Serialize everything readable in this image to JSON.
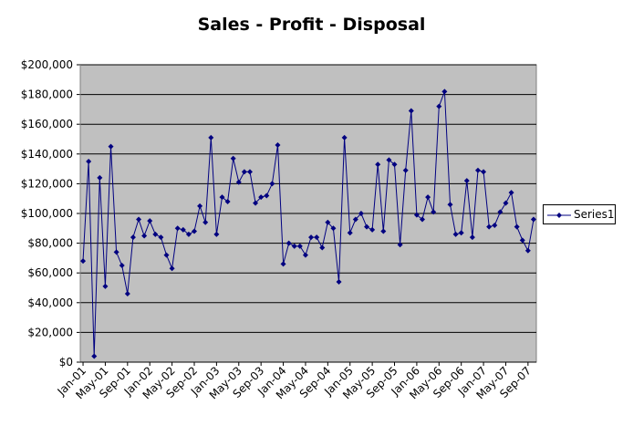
{
  "chart_data": {
    "type": "line",
    "title": "Sales - Profit - Disposal",
    "xlabel": "",
    "ylabel": "",
    "ylim": [
      0,
      200000
    ],
    "y_ticks": [
      0,
      20000,
      40000,
      60000,
      80000,
      100000,
      120000,
      140000,
      160000,
      180000,
      200000
    ],
    "y_tick_labels": [
      "$0",
      "$20,000",
      "$40,000",
      "$60,000",
      "$80,000",
      "$100,000",
      "$120,000",
      "$140,000",
      "$160,000",
      "$180,000",
      "$200,000"
    ],
    "x_tick_labels": [
      "Jan-01",
      "May-01",
      "Sep-01",
      "Jan-02",
      "May-02",
      "Sep-02",
      "Jan-03",
      "May-03",
      "Sep-03",
      "Jan-04",
      "May-04",
      "Sep-04",
      "Jan-05",
      "May-05",
      "Sep-05",
      "Jan-06",
      "May-06",
      "Sep-06",
      "Jan-07",
      "May-07",
      "Sep-07"
    ],
    "x_tick_every_months": 4,
    "grid": true,
    "plot_background": "#c0c0c0",
    "series_color": "#000080",
    "legend_position": "right",
    "series": [
      {
        "name": "Series1",
        "values": [
          68000,
          135000,
          4000,
          124000,
          51000,
          145000,
          74000,
          65000,
          46000,
          84000,
          96000,
          85000,
          95000,
          86000,
          84000,
          72000,
          63000,
          90000,
          89000,
          86000,
          88000,
          105000,
          94000,
          151000,
          86000,
          111000,
          108000,
          137000,
          121000,
          128000,
          128000,
          107000,
          111000,
          112000,
          120000,
          146000,
          66000,
          80000,
          78000,
          78000,
          72000,
          84000,
          84000,
          77000,
          94000,
          90000,
          54000,
          151000,
          87000,
          96000,
          100000,
          91000,
          89000,
          133000,
          88000,
          136000,
          133000,
          79000,
          129000,
          169000,
          99000,
          96000,
          111000,
          101000,
          172000,
          182000,
          106000,
          86000,
          87000,
          122000,
          84000,
          129000,
          128000,
          91000,
          92000,
          101000,
          107000,
          114000,
          91000,
          82000,
          75000,
          96000
        ]
      }
    ]
  }
}
